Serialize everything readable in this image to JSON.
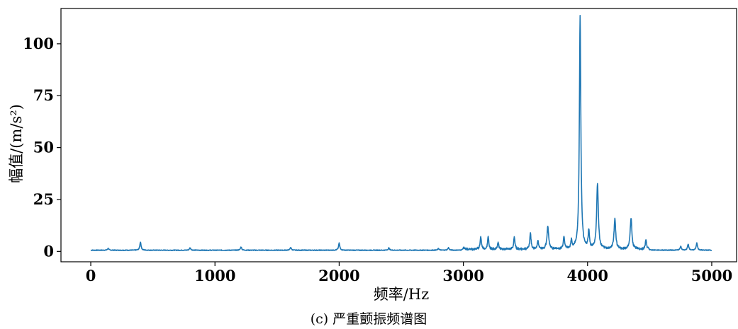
{
  "figure": {
    "caption": "(c) 严重颤振频谱图"
  },
  "chart_data": {
    "type": "line",
    "xlabel": "频率/Hz",
    "ylabel": "幅值/(m/s²)",
    "xlim": [
      -240,
      5200
    ],
    "ylim": [
      -5,
      117
    ],
    "xticks": [
      0,
      1000,
      2000,
      3000,
      4000,
      5000
    ],
    "yticks": [
      0,
      25,
      50,
      75,
      100
    ],
    "grid": false,
    "line_color": "#1f77b4",
    "baseline": 0.4,
    "peaks": [
      {
        "x": 140,
        "y": 1.3
      },
      {
        "x": 400,
        "y": 4.4
      },
      {
        "x": 800,
        "y": 1.6
      },
      {
        "x": 1210,
        "y": 2.0
      },
      {
        "x": 1610,
        "y": 1.8
      },
      {
        "x": 2000,
        "y": 3.8
      },
      {
        "x": 2400,
        "y": 1.5
      },
      {
        "x": 2800,
        "y": 1.2
      },
      {
        "x": 2880,
        "y": 1.6
      },
      {
        "x": 3000,
        "y": 1.5
      },
      {
        "x": 3140,
        "y": 6.5
      },
      {
        "x": 3200,
        "y": 6.2
      },
      {
        "x": 3280,
        "y": 3.8
      },
      {
        "x": 3410,
        "y": 6.3
      },
      {
        "x": 3540,
        "y": 8.2
      },
      {
        "x": 3600,
        "y": 4.5
      },
      {
        "x": 3680,
        "y": 11.3
      },
      {
        "x": 3810,
        "y": 6.5
      },
      {
        "x": 3870,
        "y": 4.0
      },
      {
        "x": 3940,
        "y": 112.5
      },
      {
        "x": 4010,
        "y": 9.0
      },
      {
        "x": 4080,
        "y": 32.0
      },
      {
        "x": 4220,
        "y": 15.0
      },
      {
        "x": 4350,
        "y": 15.5
      },
      {
        "x": 4470,
        "y": 4.8
      },
      {
        "x": 4750,
        "y": 2.2
      },
      {
        "x": 4810,
        "y": 3.2
      },
      {
        "x": 4880,
        "y": 3.8
      }
    ]
  }
}
